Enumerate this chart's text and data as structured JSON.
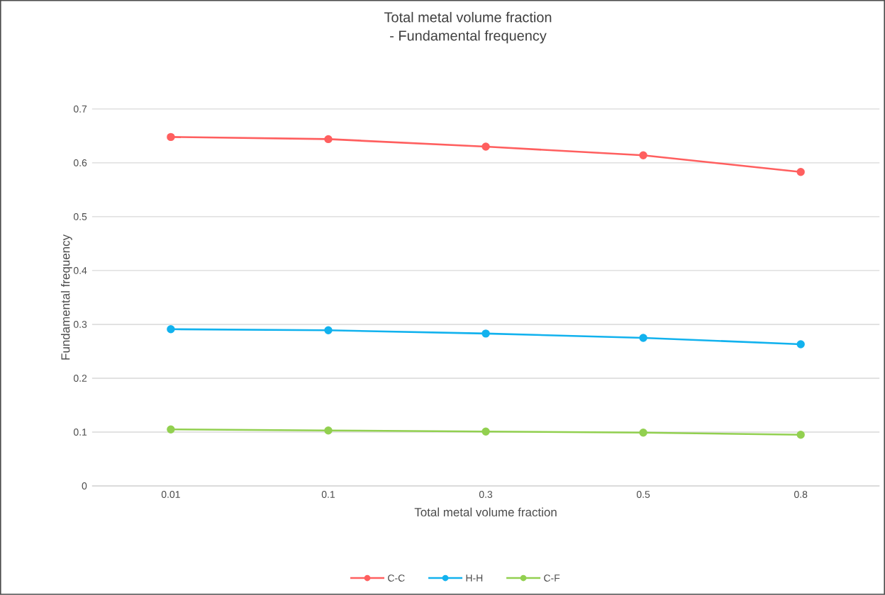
{
  "chart_data": {
    "type": "line",
    "title": "Total metal volume fraction",
    "subtitle": "- Fundamental frequency",
    "xlabel": "Total metal volume fraction",
    "ylabel": "Fundamental frequency",
    "categories": [
      "0.01",
      "0.1",
      "0.3",
      "0.5",
      "0.8"
    ],
    "series": [
      {
        "name": "C-C",
        "color": "#ff5f5f",
        "values": [
          0.648,
          0.644,
          0.63,
          0.614,
          0.583
        ]
      },
      {
        "name": "H-H",
        "color": "#12b2ee",
        "values": [
          0.291,
          0.289,
          0.283,
          0.275,
          0.263
        ]
      },
      {
        "name": "C-F",
        "color": "#92d050",
        "values": [
          0.105,
          0.103,
          0.101,
          0.099,
          0.095
        ]
      }
    ],
    "ylim": [
      0,
      0.7
    ],
    "yticks": [
      0,
      0.1,
      0.2,
      0.3,
      0.4,
      0.5,
      0.6,
      0.7
    ],
    "grid": "y",
    "legend": "bottom",
    "marker": "circle",
    "line_style": "solid"
  }
}
